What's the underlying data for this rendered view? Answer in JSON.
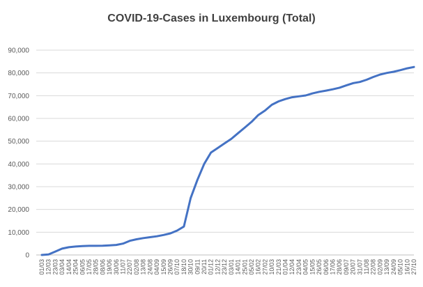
{
  "chart_data": {
    "type": "line",
    "title": "COVID-19-Cases in Luxembourg (Total)",
    "xlabel": "",
    "ylabel": "",
    "ylim": [
      0,
      90000
    ],
    "yticks": [
      "0",
      "10,000",
      "20,000",
      "30,000",
      "40,000",
      "50,000",
      "60,000",
      "70,000",
      "80,000",
      "90,000"
    ],
    "ytick_values": [
      0,
      10000,
      20000,
      30000,
      40000,
      50000,
      60000,
      70000,
      80000,
      90000
    ],
    "categories": [
      "01/03",
      "12/03",
      "23/03",
      "03/04",
      "14/04",
      "25/04",
      "06/05",
      "17/05",
      "28/05",
      "08/06",
      "19/06",
      "30/06",
      "11/07",
      "22/07",
      "02/08",
      "13/08",
      "24/08",
      "04/09",
      "15/09",
      "26/09",
      "07/10",
      "18/10",
      "30/10",
      "09/11",
      "20/11",
      "01/12",
      "12/12",
      "23/12",
      "03/01",
      "14/01",
      "25/01",
      "05/02",
      "16/02",
      "27/02",
      "10/03",
      "21/03",
      "01/04",
      "12/04",
      "23/04",
      "04/05",
      "15/05",
      "26/05",
      "06/06",
      "17/06",
      "28/06",
      "09/07",
      "20/07",
      "31/07",
      "11/08",
      "22/08",
      "02/09",
      "13/09",
      "24/09",
      "05/10",
      "16/10",
      "27/10"
    ],
    "grid": true,
    "legend": "none",
    "series": [
      {
        "name": "",
        "color": "#4472c4",
        "values": [
          0,
          200,
          1500,
          2800,
          3400,
          3700,
          3900,
          4000,
          4000,
          4050,
          4200,
          4400,
          5000,
          6200,
          6900,
          7400,
          7800,
          8200,
          8800,
          9500,
          10700,
          12500,
          25000,
          33000,
          40000,
          45000,
          47000,
          49000,
          51000,
          53500,
          56000,
          58500,
          61500,
          63500,
          66000,
          67500,
          68500,
          69300,
          69700,
          70100,
          71000,
          71700,
          72200,
          72800,
          73500,
          74500,
          75500,
          76000,
          77000,
          78200,
          79300,
          80000,
          80500,
          81200,
          82000,
          82600
        ]
      }
    ]
  }
}
